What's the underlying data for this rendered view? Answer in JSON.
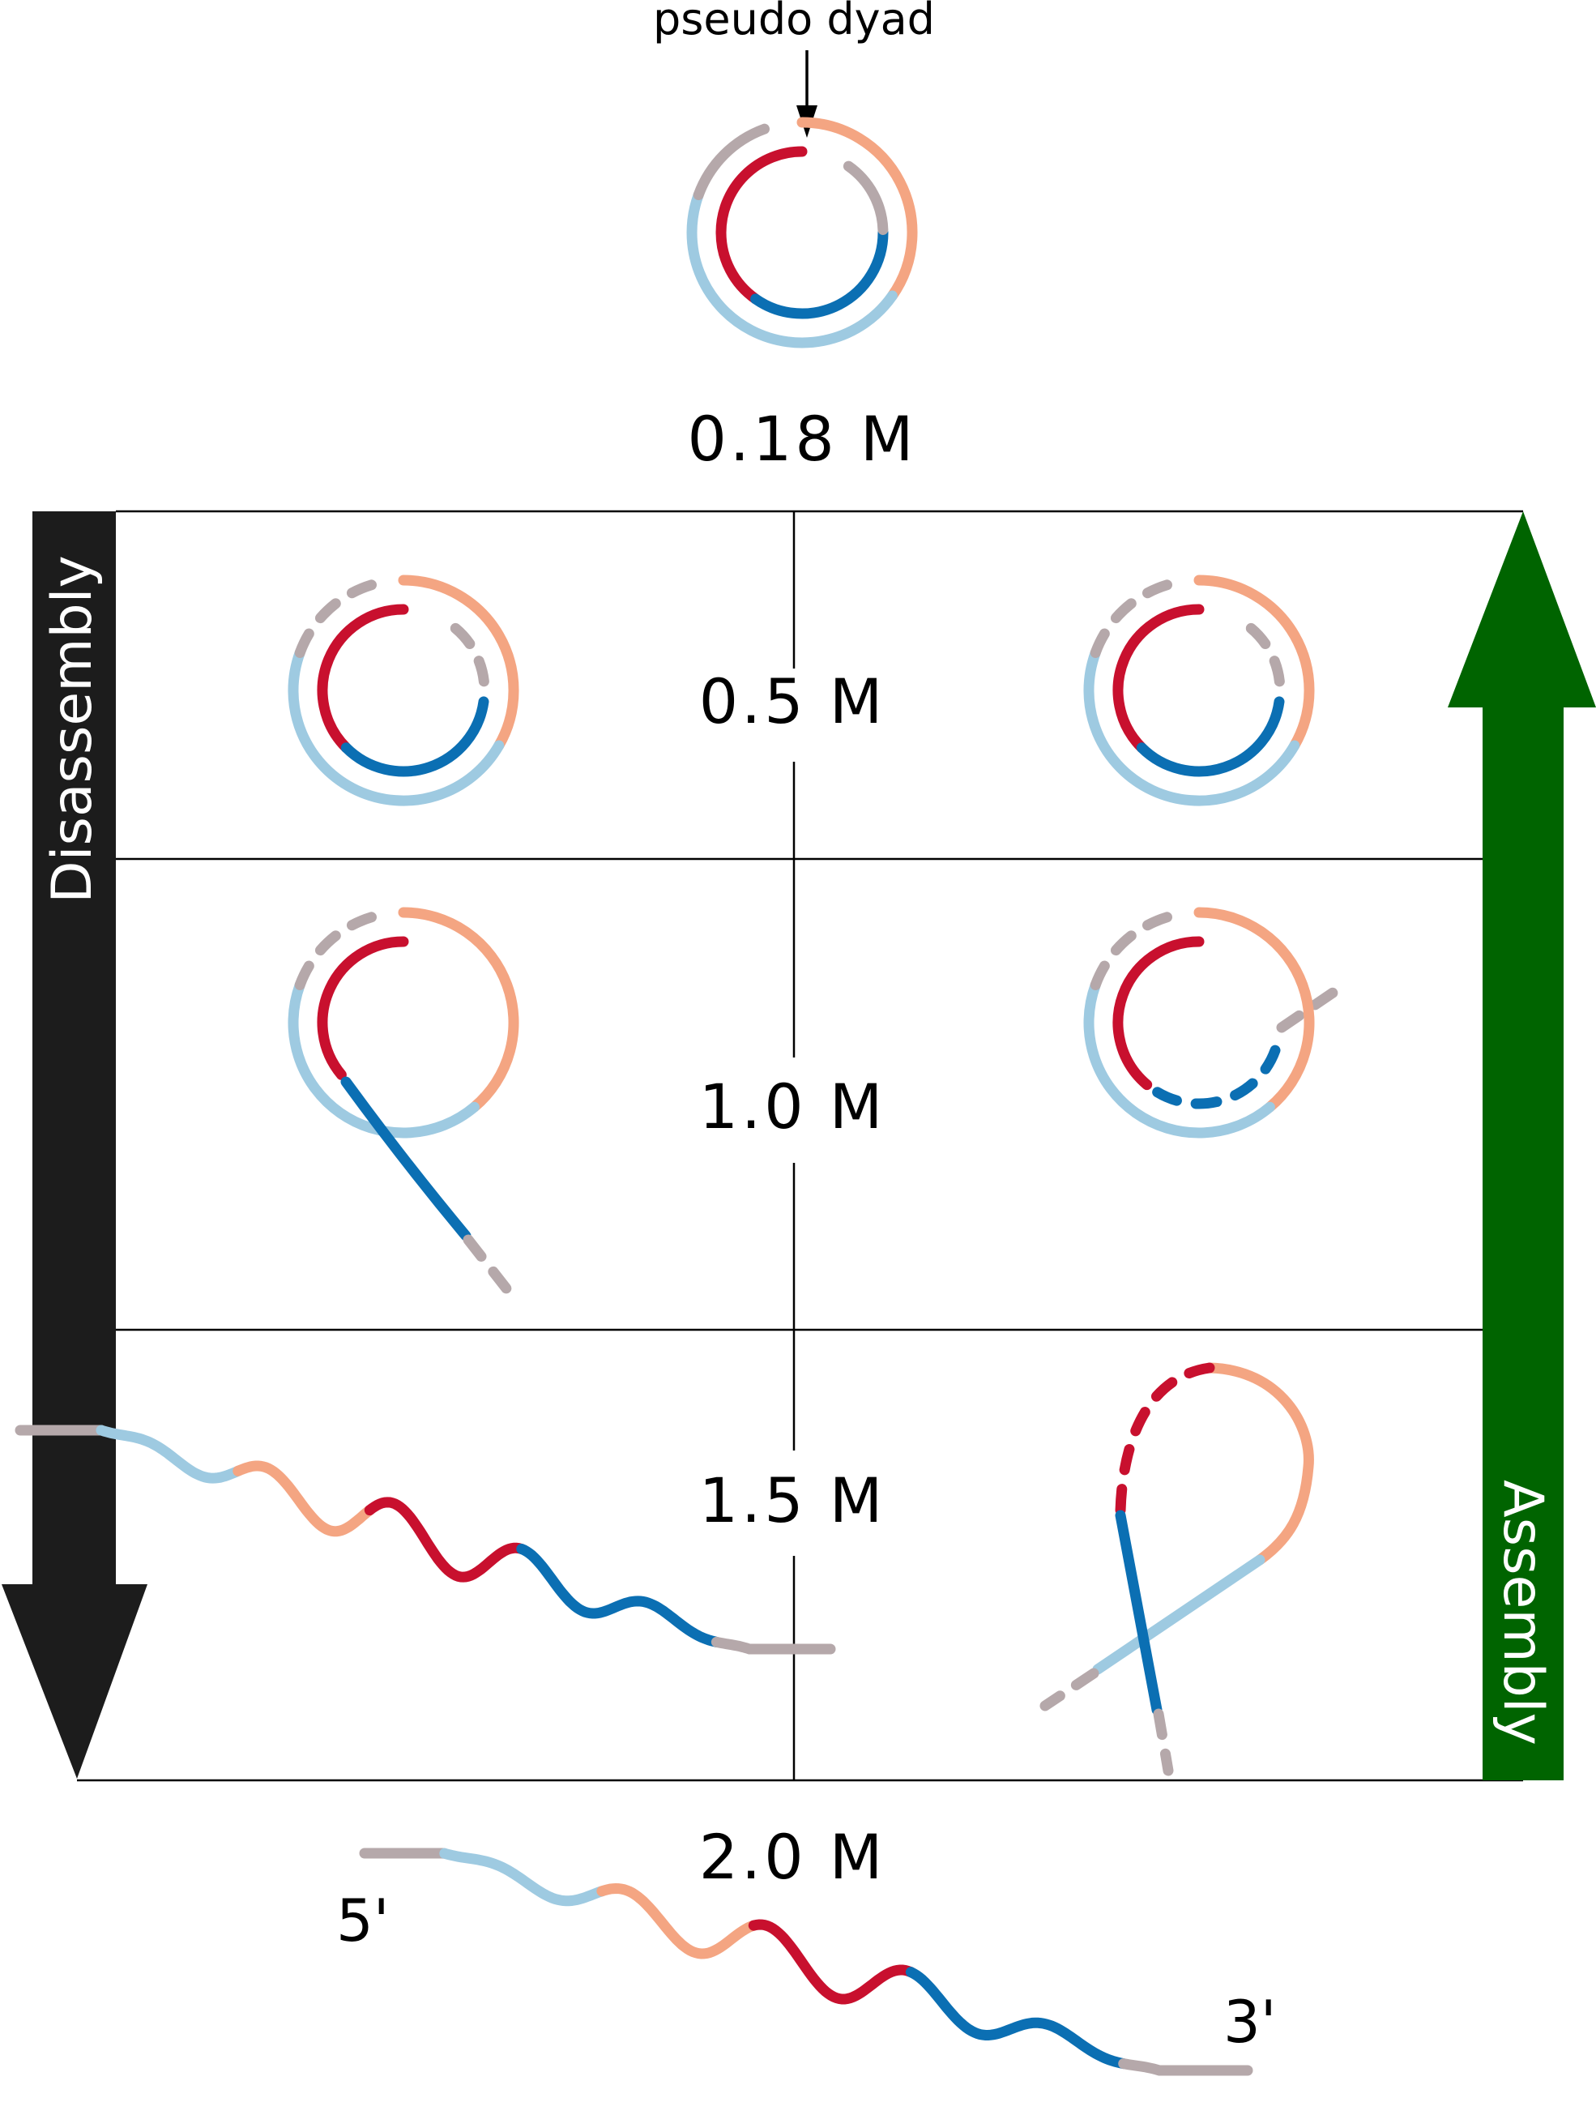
{
  "labels": {
    "pseudo_dyad": "pseudo dyad",
    "disassembly": "Disassembly",
    "assembly": "Assembly",
    "five_prime": "5'",
    "three_prime": "3'"
  },
  "concentrations": [
    "0.18 M",
    "0.5 M",
    "1.0 M",
    "1.5 M",
    "2.0 M"
  ],
  "colors": {
    "red": "#c8102e",
    "dark_blue": "#0b6fb3",
    "light_blue": "#9ecae1",
    "peach": "#f4a582",
    "gray": "#b5a8aa",
    "disassembly_arrow": "#1c1c1c",
    "assembly_arrow": "#006400"
  },
  "segments": [
    "gray",
    "light_blue",
    "peach",
    "red",
    "dark_blue",
    "gray"
  ]
}
